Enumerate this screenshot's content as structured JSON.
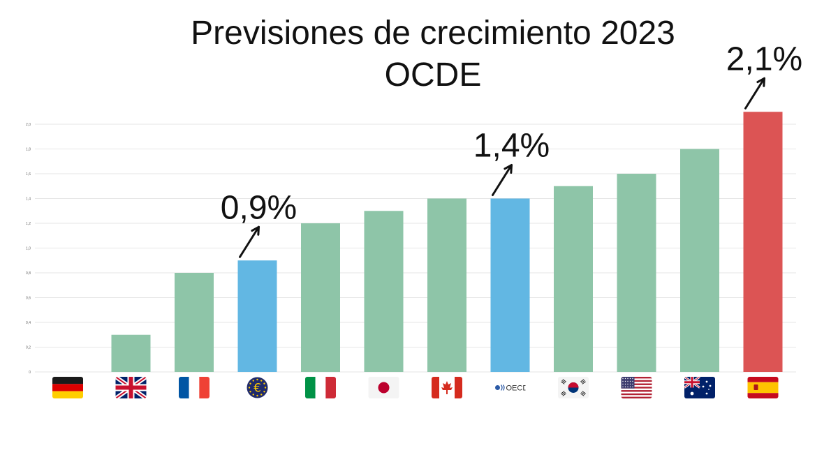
{
  "title_line1": "Previsiones de crecimiento 2023",
  "title_line2": "OCDE",
  "chart_data": {
    "type": "bar",
    "title": "Previsiones de crecimiento 2023 OCDE",
    "categories": [
      "Alemania",
      "Reino Unido",
      "Francia",
      "Eurozona",
      "Italia",
      "Japón",
      "Canadá",
      "OCDE",
      "Corea del Sur",
      "Estados Unidos",
      "Australia",
      "España"
    ],
    "values": [
      0.0,
      0.3,
      0.8,
      0.9,
      1.2,
      1.3,
      1.4,
      1.4,
      1.5,
      1.6,
      1.8,
      2.1
    ],
    "icons": [
      "flag-germany",
      "flag-uk",
      "flag-france",
      "eu-euro-symbol",
      "flag-italy",
      "flag-japan",
      "flag-canada",
      "oecd-logo",
      "flag-south-korea",
      "flag-usa",
      "flag-australia",
      "flag-spain"
    ],
    "colors": [
      "#8ec5a8",
      "#8ec5a8",
      "#8ec5a8",
      "#62b7e3",
      "#8ec5a8",
      "#8ec5a8",
      "#8ec5a8",
      "#62b7e3",
      "#8ec5a8",
      "#8ec5a8",
      "#8ec5a8",
      "#dc5454"
    ],
    "ylim": [
      0,
      2.0
    ],
    "yticks": [
      "0",
      "0,2",
      "0,4",
      "0,6",
      "0,8",
      "1,0",
      "1,2",
      "1,4",
      "1,6",
      "1,8",
      "2,0"
    ],
    "grid": true,
    "oecd_logo_text": "OECD",
    "euro_symbol": "€",
    "annotations": [
      {
        "category_index": 3,
        "label": "0,9%"
      },
      {
        "category_index": 7,
        "label": "1,4%"
      },
      {
        "category_index": 11,
        "label": "2,1%"
      }
    ]
  }
}
